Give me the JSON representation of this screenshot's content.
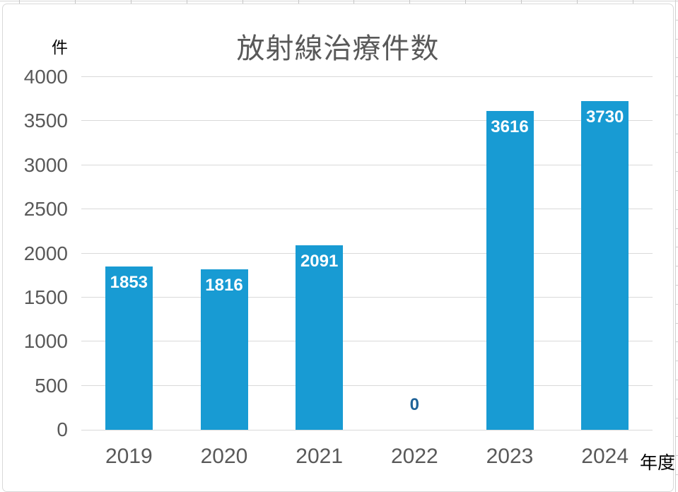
{
  "chart_data": {
    "type": "bar",
    "title": "放射線治療件数",
    "ylabel": "件",
    "xlabel": "年度",
    "categories": [
      "2019",
      "2020",
      "2021",
      "2022",
      "2023",
      "2024"
    ],
    "values": [
      1853,
      1816,
      2091,
      0,
      3616,
      3730
    ],
    "data_labels": [
      "1853",
      "1816",
      "2091",
      "0",
      "3616",
      "3730"
    ],
    "yticks": [
      0,
      500,
      1000,
      1500,
      2000,
      2500,
      3000,
      3500,
      4000
    ],
    "ylim": [
      0,
      4000
    ],
    "grid": true,
    "legend": "none",
    "bar_color": "#189bd3",
    "label_color_inside": "#ffffff",
    "label_color_outside": "#1f6398",
    "axis_text_color": "#595959",
    "title_color": "#595959",
    "gridline_color": "#d9d9d9"
  }
}
